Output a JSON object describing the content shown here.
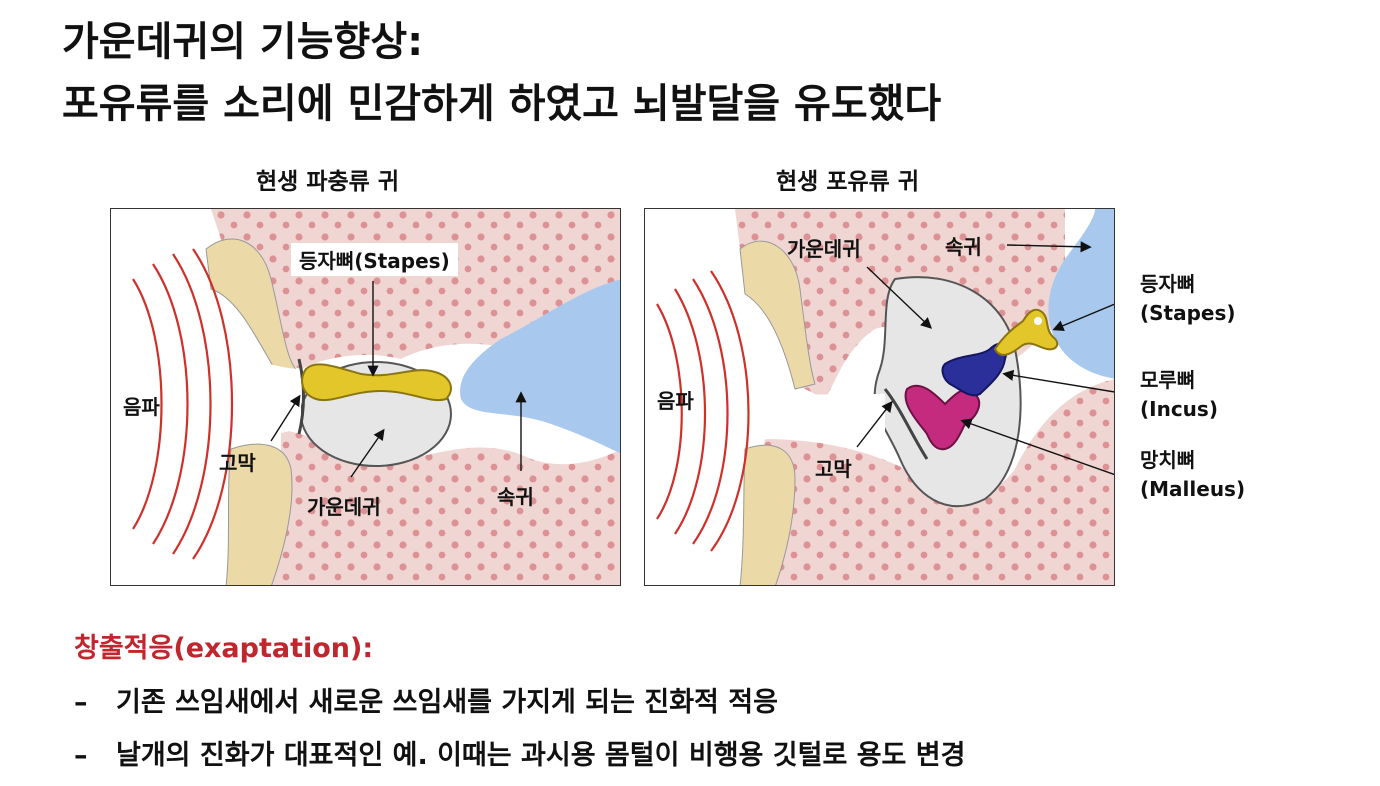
{
  "title": {
    "line1": "가운데귀의 기능향상:",
    "line2": "포유류를 소리에 민감하게 하였고 뇌발달을 유도했다"
  },
  "panels": {
    "reptile": {
      "heading": "현생 파충류 귀",
      "labels": {
        "stapes": "등자뼈(Stapes)",
        "sound": "음파",
        "eardrum": "고막",
        "middle_ear": "가운데귀",
        "inner_ear": "속귀"
      }
    },
    "mammal": {
      "heading": "현생 포유류 귀",
      "labels": {
        "middle_ear": "가운데귀",
        "inner_ear": "속귀",
        "sound": "음파",
        "eardrum": "고막",
        "stapes_ko": "등자뼈",
        "stapes_en": "(Stapes)",
        "incus_ko": "모루뼈",
        "incus_en": "(Incus)",
        "malleus_ko": "망치뼈",
        "malleus_en": "(Malleus)"
      }
    }
  },
  "exaptation": {
    "heading": "창출적응(exaptation):",
    "bullets": [
      {
        "dash": "–",
        "text": "기존 쓰임새에서 새로운 쓰임새를 가지게 되는 진화적 적응"
      },
      {
        "dash": "–",
        "text": "날개의 진화가 대표적인 예. 이때는 과시용 몸털이 비행용 깃털로 용도 변경"
      }
    ]
  },
  "colors": {
    "heading_red": "#c0262d",
    "sound_wave": "#d0302a",
    "stapes_yellow": "#e3c62a",
    "incus_blue": "#2a2f9a",
    "malleus_magenta": "#c42a7e",
    "inner_ear_blue": "#a9c8ee",
    "tissue_pink": "#f0d6d3",
    "tissue_dots": "#d9868a",
    "cavity_gray": "#e6e6e6"
  }
}
